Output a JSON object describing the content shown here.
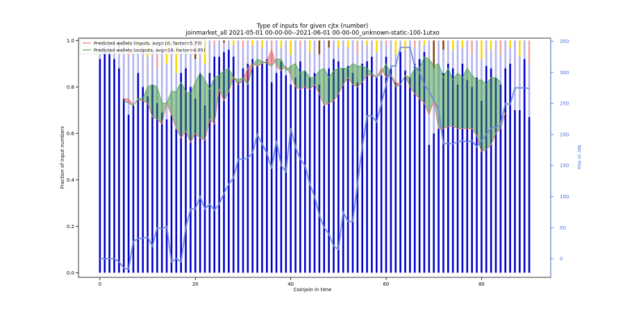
{
  "chart_data": {
    "type": "bar",
    "title": "Type of inputs for given cjtx (number)",
    "subtitle": "joinmarket_all 2021-05-01 00-00-00--2021-06-01 00-00-00_unknown-static-100-1utxo",
    "xlabel": "Coinjoin in time",
    "ylabel": "Fraction of input numbers",
    "ylabel_right": "btc in mix",
    "xlim": [
      -4.5,
      94.5
    ],
    "ylim": [
      -0.02,
      1.01
    ],
    "ylim_right": [
      -30,
      355
    ],
    "xticks": [
      "0",
      "20",
      "40",
      "60",
      "80"
    ],
    "yticks": [
      "0.0",
      "0.2",
      "0.4",
      "0.6",
      "0.8",
      "1.0"
    ],
    "yticks_right": [
      "0",
      "50",
      "100",
      "150",
      "200",
      "250",
      "300",
      "350"
    ],
    "grid": false,
    "legend_position": "top-left",
    "colors": {
      "fresh": "#0000cc",
      "remix": "#b3b3ee",
      "mid": "#ffd700",
      "top_light": "#f4a4a4",
      "top_dark": "#8b4513",
      "inputs_line": "#e8796a",
      "inputs_fill": "#f4534a",
      "outputs_line": "#5aa85a",
      "outputs_fill": "#3c9a3c",
      "btc_line": "#6f8bdb"
    },
    "legend": [
      "Predicted wallets (inputs, avg=10, factor=5.73)",
      "Predicted wallets (outputs, avg=10, factor=4.05)"
    ],
    "bars": {
      "fresh": [
        0.92,
        0.95,
        0.95,
        0.92,
        0.88,
        0.75,
        0.68,
        0.72,
        0.86,
        0.8,
        0.76,
        0.81,
        0.73,
        0.69,
        0.66,
        0.68,
        0.62,
        0.86,
        0.88,
        0.8,
        0.75,
        0.86,
        0.72,
        0.86,
        0.93,
        0.93,
        0.95,
        0.96,
        0.93,
        0.82,
        0.88,
        0.9,
        0.92,
        0.89,
        0.9,
        0.92,
        0.82,
        0.86,
        0.91,
        0.85,
        0.81,
        0.84,
        0.91,
        0.87,
        0.84,
        0.86,
        0.81,
        0.72,
        0.88,
        0.92,
        0.91,
        0.88,
        0.89,
        0.86,
        0.82,
        0.9,
        0.91,
        0.93,
        0.84,
        0.85,
        0.93,
        0.88,
        0.82,
        0.95,
        0.87,
        0.84,
        0.9,
        0.92,
        0.95,
        0.55,
        0.6,
        0.62,
        0.86,
        0.9,
        0.88,
        0.81,
        0.9,
        0.83,
        0.8,
        0.84,
        0.74,
        0.89,
        0.88,
        0.84,
        0.81,
        0.88,
        0.9,
        0.7,
        0.7,
        0.92,
        0.67
      ],
      "remix": [
        0.98,
        0.99,
        0.98,
        0.97,
        0.96,
        0.96,
        0.93,
        0.95,
        0.97,
        0.94,
        0.93,
        0.93,
        0.88,
        0.9,
        0.9,
        0.93,
        0.86,
        0.95,
        0.97,
        0.93,
        0.92,
        0.95,
        0.9,
        0.95,
        0.98,
        0.98,
        0.99,
        0.99,
        0.98,
        0.94,
        0.97,
        0.97,
        0.98,
        0.97,
        0.97,
        0.98,
        0.94,
        0.96,
        0.97,
        0.95,
        0.94,
        0.95,
        0.97,
        0.96,
        0.95,
        0.96,
        0.94,
        0.9,
        0.97,
        0.98,
        0.97,
        0.97,
        0.97,
        0.96,
        0.94,
        0.97,
        0.98,
        0.98,
        0.95,
        0.96,
        0.98,
        0.97,
        0.94,
        0.99,
        0.96,
        0.95,
        0.97,
        0.98,
        0.98,
        0.85,
        0.88,
        0.88,
        0.96,
        0.97,
        0.96,
        0.94,
        0.97,
        0.95,
        0.94,
        0.95,
        0.92,
        0.97,
        0.96,
        0.95,
        0.94,
        0.97,
        0.97,
        0.92,
        0.93,
        0.98,
        0.9
      ],
      "mid": [
        0.0,
        0.0,
        0.0,
        0.0,
        0.0,
        0.0,
        0.0,
        0.0,
        0.0,
        0.0,
        0.0,
        0.0,
        0.0,
        0.0,
        0.0,
        0.0,
        0.0,
        0.0,
        0.0,
        0.0,
        0.0,
        0.0,
        0.0,
        0.0,
        0.0,
        0.0,
        0.0,
        0.0,
        0.0,
        0.0,
        0.0,
        0.0,
        0.0,
        0.0,
        0.0,
        0.0,
        0.0,
        0.0,
        0.0,
        0.0,
        0.0,
        0.0,
        0.0,
        0.0,
        0.0,
        0.0,
        0.0,
        0.0,
        0.0,
        0.0,
        0.0,
        0.0,
        0.0,
        0.0,
        0.0,
        0.0,
        0.0,
        0.0,
        0.0,
        0.0,
        0.0,
        0.0,
        0.0,
        0.0,
        0.0,
        0.0,
        0.0,
        0.0,
        0.0,
        0.0,
        0.0,
        0.0,
        0.0,
        0.0,
        0.0,
        0.0,
        0.0,
        0.0,
        0.0,
        0.0,
        0.0,
        0.0,
        0.0,
        0.0,
        0.0,
        0.0,
        0.0,
        0.0,
        0.0,
        0.0,
        0.0
      ]
    },
    "btc_in_mix": [
      0,
      0,
      0,
      0,
      -5,
      -15,
      -17,
      28,
      32,
      33,
      35,
      20,
      50,
      48,
      52,
      -5,
      0,
      -5,
      50,
      80,
      80,
      100,
      80,
      88,
      78,
      88,
      105,
      120,
      130,
      160,
      160,
      162,
      170,
      200,
      185,
      170,
      145,
      190,
      150,
      140,
      210,
      180,
      160,
      150,
      120,
      100,
      70,
      50,
      40,
      20,
      15,
      75,
      60,
      60,
      120,
      180,
      230,
      230,
      220,
      250,
      280,
      310,
      310,
      340,
      340,
      340,
      310,
      300,
      280,
      270,
      255,
      240,
      185,
      185,
      185,
      188,
      190,
      188,
      190,
      180,
      190,
      200,
      210,
      212,
      215,
      250,
      248,
      275,
      275,
      275,
      274
    ],
    "predicted_inputs": [
      null,
      null,
      null,
      null,
      null,
      0.748,
      0.748,
      0.722,
      0.745,
      0.74,
      0.73,
      0.67,
      0.66,
      0.64,
      0.73,
      0.68,
      0.62,
      0.58,
      0.61,
      0.56,
      0.6,
      0.58,
      0.57,
      0.66,
      0.64,
      0.79,
      0.74,
      0.78,
      0.84,
      0.81,
      0.83,
      0.88,
      0.9,
      0.89,
      0.9,
      0.91,
      0.96,
      0.89,
      0.87,
      0.89,
      0.85,
      0.8,
      0.79,
      0.8,
      0.79,
      0.81,
      0.77,
      0.72,
      0.73,
      0.74,
      0.77,
      0.81,
      0.84,
      0.81,
      0.8,
      0.82,
      0.85,
      0.85,
      0.84,
      0.88,
      0.84,
      0.85,
      0.82,
      0.81,
      0.85,
      0.8,
      0.77,
      0.75,
      0.73,
      0.68,
      0.74,
      0.62,
      0.62,
      0.63,
      0.63,
      0.62,
      0.62,
      0.62,
      0.62,
      0.59,
      0.52,
      0.53,
      0.55,
      0.6,
      0.62,
      0.69,
      null,
      null,
      null,
      null,
      null
    ],
    "predicted_outputs": [
      null,
      null,
      null,
      null,
      null,
      0.74,
      0.73,
      0.72,
      0.75,
      0.75,
      0.8,
      0.81,
      0.8,
      0.73,
      0.73,
      0.78,
      0.78,
      0.82,
      0.78,
      0.77,
      0.82,
      0.86,
      0.83,
      0.79,
      0.84,
      0.85,
      0.87,
      0.88,
      0.84,
      0.83,
      0.84,
      0.81,
      0.89,
      0.92,
      0.91,
      0.9,
      0.89,
      0.92,
      0.92,
      0.87,
      0.89,
      0.9,
      0.86,
      0.87,
      0.84,
      0.84,
      0.87,
      0.88,
      0.84,
      0.87,
      0.88,
      0.88,
      0.88,
      0.9,
      0.89,
      0.89,
      0.88,
      0.86,
      0.84,
      0.86,
      0.9,
      0.85,
      0.8,
      0.81,
      0.85,
      0.84,
      0.88,
      0.88,
      0.93,
      0.92,
      0.89,
      0.9,
      0.84,
      0.88,
      0.83,
      0.86,
      0.84,
      0.88,
      0.85,
      0.83,
      0.83,
      0.81,
      0.84,
      0.84,
      0.82,
      null,
      null,
      null,
      null,
      null,
      null
    ]
  }
}
